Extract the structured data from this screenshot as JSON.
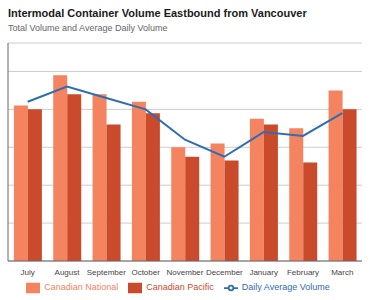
{
  "chart_data": {
    "type": "bar",
    "title": "Intermodal Container Volume Eastbound from Vancouver",
    "subtitle": "Total Volume and Average Daily Volume",
    "categories": [
      "July",
      "August",
      "September",
      "October",
      "November",
      "December",
      "January",
      "February",
      "March"
    ],
    "series": [
      {
        "name": "Canadian National",
        "color": "#F4845F",
        "values": [
          82,
          98,
          88,
          84,
          60,
          62,
          75,
          70,
          90
        ]
      },
      {
        "name": "Canadian Pacific",
        "color": "#C94B2B",
        "values": [
          80,
          88,
          72,
          78,
          55,
          53,
          72,
          52,
          80
        ]
      },
      {
        "name": "Daily Average Volume",
        "type": "line",
        "color": "#2E6DB4",
        "values": [
          84,
          92,
          86,
          80,
          64,
          55,
          68,
          66,
          78
        ]
      }
    ],
    "ylim": [
      0,
      115
    ],
    "yticks": [
      20,
      40,
      60,
      80,
      100
    ],
    "grid": true,
    "legend": "bottom",
    "tick_labels": "x"
  }
}
